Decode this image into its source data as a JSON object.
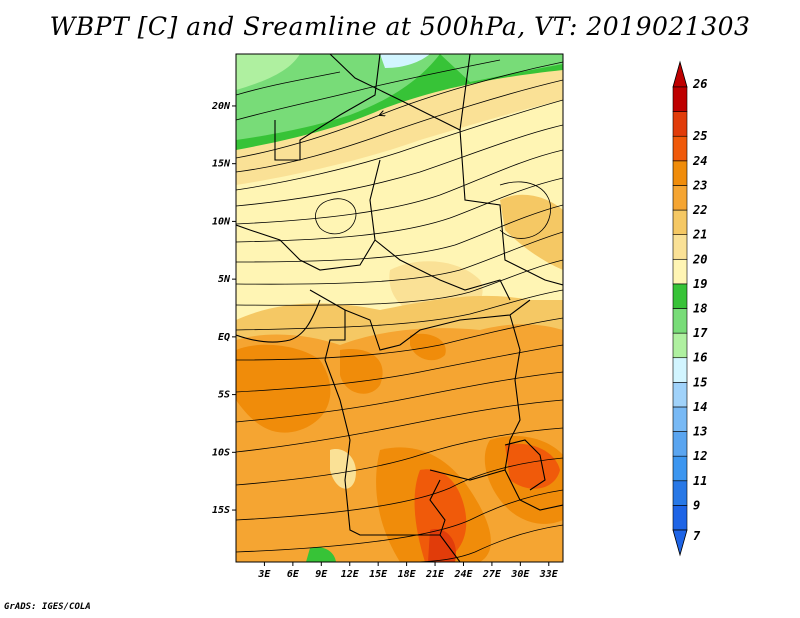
{
  "title": "WBPT [C] and Sreamline at 500hPa, VT: 2019021303",
  "credit": "GrADS: IGES/COLA",
  "map": {
    "region": "Equatorial and Southern Africa",
    "lat_labels": [
      "20N",
      "15N",
      "10N",
      "5N",
      "EQ",
      "5S",
      "10S",
      "15S"
    ],
    "lat_values": [
      20,
      15,
      10,
      5,
      0,
      -5,
      -10,
      -15
    ],
    "lon_labels": [
      "3E",
      "6E",
      "9E",
      "12E",
      "15E",
      "18E",
      "21E",
      "24E",
      "27E",
      "30E",
      "33E"
    ],
    "lon_values": [
      3,
      6,
      9,
      12,
      15,
      18,
      21,
      24,
      27,
      30,
      33
    ],
    "lon_range": [
      0,
      34.5
    ],
    "lat_range": [
      -19.5,
      24.5
    ]
  },
  "colorbar": {
    "labels": [
      "7",
      "9",
      "11",
      "12",
      "13",
      "14",
      "15",
      "16",
      "17",
      "18",
      "19",
      "20",
      "21",
      "22",
      "23",
      "24",
      "25",
      "26"
    ],
    "colors": [
      "#1e64e6",
      "#2878e6",
      "#3c96f0",
      "#5aa5f0",
      "#78b9f5",
      "#a0d2fa",
      "#d2f5ff",
      "#aff0a0",
      "#78dc78",
      "#37c337",
      "#fff5b4",
      "#fae196",
      "#f5c864",
      "#f5a532",
      "#f08c0a",
      "#f05a0a",
      "#e13c0a",
      "#be0000"
    ],
    "below_color": "#1e64e6",
    "above_color": "#be0000"
  }
}
